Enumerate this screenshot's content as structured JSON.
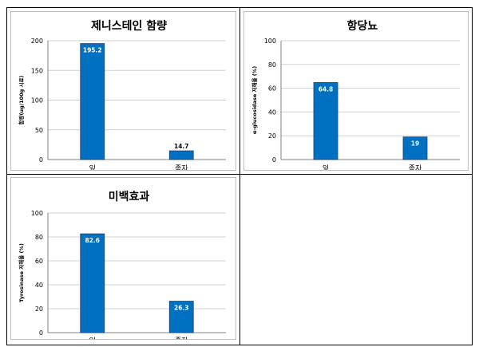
{
  "chart_data": [
    {
      "type": "bar",
      "title": "제니스테인 함량",
      "ylabel": "함량(ug/100g 시료)",
      "categories": [
        "잎",
        "종자"
      ],
      "values": [
        195.2,
        14.7
      ],
      "data_labels": [
        "195.2",
        "14.7"
      ],
      "ylim": [
        0,
        200
      ],
      "yticks": [
        0,
        50,
        100,
        150,
        200
      ],
      "grid": true,
      "bar_color": "#0070C0",
      "label_positions": [
        "inside",
        "outside"
      ]
    },
    {
      "type": "bar",
      "title": "항당뇨",
      "ylabel": "α-glucosidase 저해율 (%)",
      "categories": [
        "잎",
        "종자"
      ],
      "values": [
        64.8,
        19
      ],
      "data_labels": [
        "64.8",
        "19"
      ],
      "ylim": [
        0,
        100
      ],
      "yticks": [
        0,
        20,
        40,
        60,
        80,
        100
      ],
      "grid": true,
      "bar_color": "#0070C0",
      "label_positions": [
        "inside",
        "inside"
      ]
    },
    {
      "type": "bar",
      "title": "미백효과",
      "ylabel": "Tyrosinase 저해율 (%)",
      "categories": [
        "잎",
        "종자"
      ],
      "values": [
        82.6,
        26.3
      ],
      "data_labels": [
        "82.6",
        "26.3"
      ],
      "ylim": [
        0,
        100
      ],
      "yticks": [
        0,
        20,
        40,
        60,
        80,
        100
      ],
      "grid": true,
      "bar_color": "#0070C0",
      "label_positions": [
        "inside",
        "inside"
      ]
    }
  ]
}
